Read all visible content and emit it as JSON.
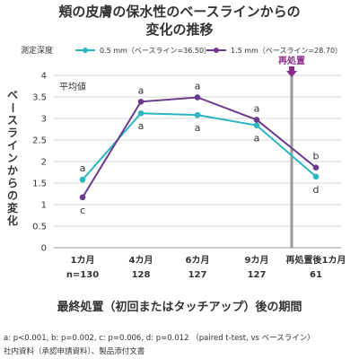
{
  "chart_data": {
    "type": "line",
    "title_line1": "頬の皮膚の保水性のベースラインからの",
    "title_line2": "変化の推移",
    "legend_title": "測定深度",
    "legend_position": "top",
    "inner_label": "平均値",
    "ylabel": "ベースラインからの変化",
    "xlabel": "最終処置（初回またはタッチアップ）後の期間",
    "ylim": [
      0,
      4
    ],
    "yticks": [
      "0",
      "0.5",
      "1",
      "1.5",
      "2",
      "2.5",
      "3",
      "3.5",
      "4"
    ],
    "grid": "horizontal",
    "categories": [
      "1カ月",
      "4カ月",
      "6カ月",
      "9カ月",
      "再処置後1カ月"
    ],
    "n_values": [
      "n=130",
      "128",
      "127",
      "127",
      "61"
    ],
    "retreatment_label": "再処置",
    "retreatment_after_index": 3,
    "series": [
      {
        "name": "0.5 mm（ベースライン=36.50）",
        "color": "#2bb5c0",
        "values": [
          1.58,
          3.12,
          3.08,
          2.84,
          1.65
        ],
        "point_labels": [
          "a",
          "a",
          "a",
          "a",
          "d"
        ]
      },
      {
        "name": "1.5 mm（ベースライン=28.70）",
        "color": "#6a3b8c",
        "values": [
          1.17,
          3.39,
          3.49,
          2.97,
          1.86
        ],
        "point_labels": [
          "c",
          "a",
          "a",
          "a",
          "b"
        ]
      }
    ],
    "footnote": "a: p<0.001, b: p=0.002, c: p=0.006, d: p=0.012 （paired t-test, vs ベースライン）",
    "source": "社内資料（承認申請資料）、製品添付文書"
  }
}
